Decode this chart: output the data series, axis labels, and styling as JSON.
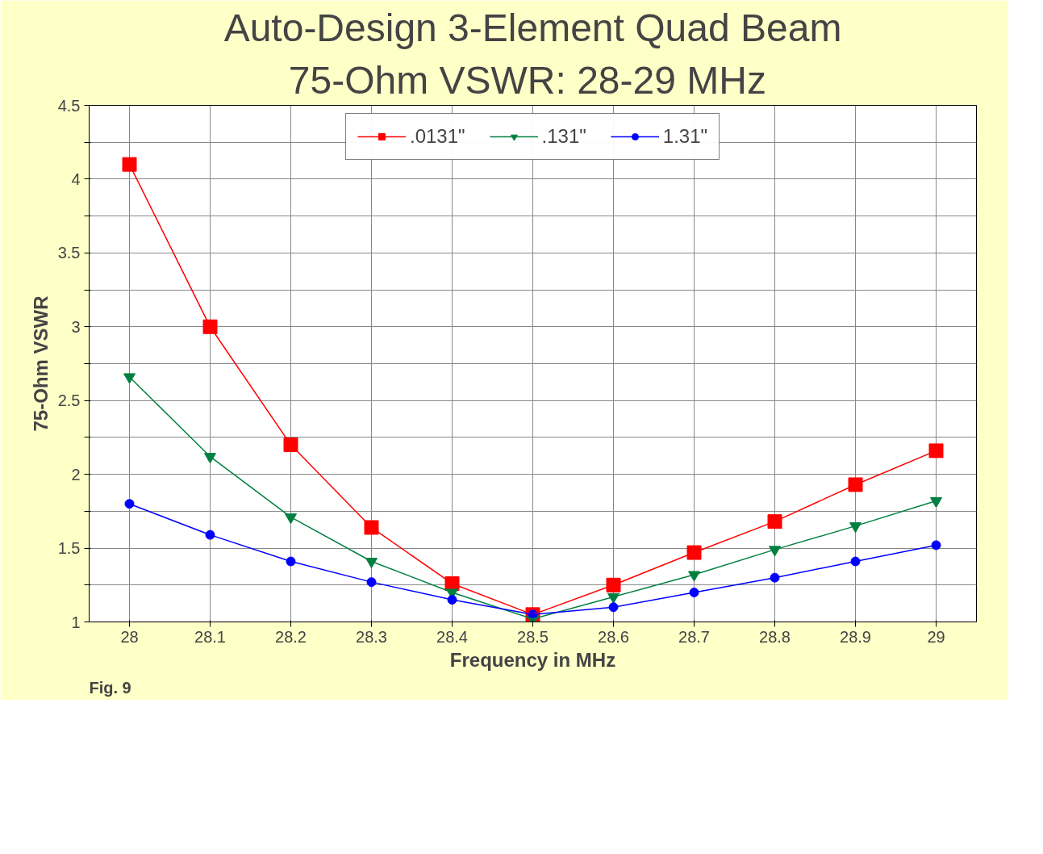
{
  "chart_data": {
    "type": "line",
    "title": "Auto-Design 3-Element Quad Beam",
    "subtitle": "75-Ohm VSWR:  28-29 MHz",
    "xlabel": "Frequency in MHz",
    "ylabel": "75-Ohm VSWR",
    "x": [
      28,
      28.1,
      28.2,
      28.3,
      28.4,
      28.5,
      28.6,
      28.7,
      28.8,
      28.9,
      29
    ],
    "series": [
      {
        "name": ".0131\"",
        "color": "#ff0000",
        "marker": "square",
        "values": [
          4.1,
          3.0,
          2.2,
          1.64,
          1.26,
          1.05,
          1.25,
          1.47,
          1.68,
          1.93,
          2.16
        ]
      },
      {
        "name": ".131\"",
        "color": "#008040",
        "marker": "triangle",
        "values": [
          2.66,
          2.12,
          1.71,
          1.41,
          1.2,
          1.02,
          1.17,
          1.32,
          1.49,
          1.65,
          1.82
        ]
      },
      {
        "name": "1.31\"",
        "color": "#0000ff",
        "marker": "circle",
        "values": [
          1.8,
          1.59,
          1.41,
          1.27,
          1.15,
          1.05,
          1.1,
          1.2,
          1.3,
          1.41,
          1.52
        ]
      }
    ],
    "xlim": [
      27.95,
      29.05
    ],
    "xticks": [
      28,
      28.1,
      28.2,
      28.3,
      28.4,
      28.5,
      28.6,
      28.7,
      28.8,
      28.9,
      29
    ],
    "ylim": [
      1,
      4.5
    ],
    "yticks": [
      1,
      {
        "value": 1.25,
        "label": null
      },
      1.5,
      {
        "value": 1.75,
        "label": null
      },
      2,
      {
        "value": 2.25,
        "label": null
      },
      2.5,
      {
        "value": 2.75,
        "label": null
      },
      3,
      {
        "value": 3.25,
        "label": null
      },
      3.5,
      {
        "value": 3.75,
        "label": null
      },
      4,
      {
        "value": 4.25,
        "label": null
      },
      4.5
    ],
    "grid": true,
    "legend": "top",
    "line_style": "solid",
    "annotations": [
      "Fig. 9"
    ]
  }
}
